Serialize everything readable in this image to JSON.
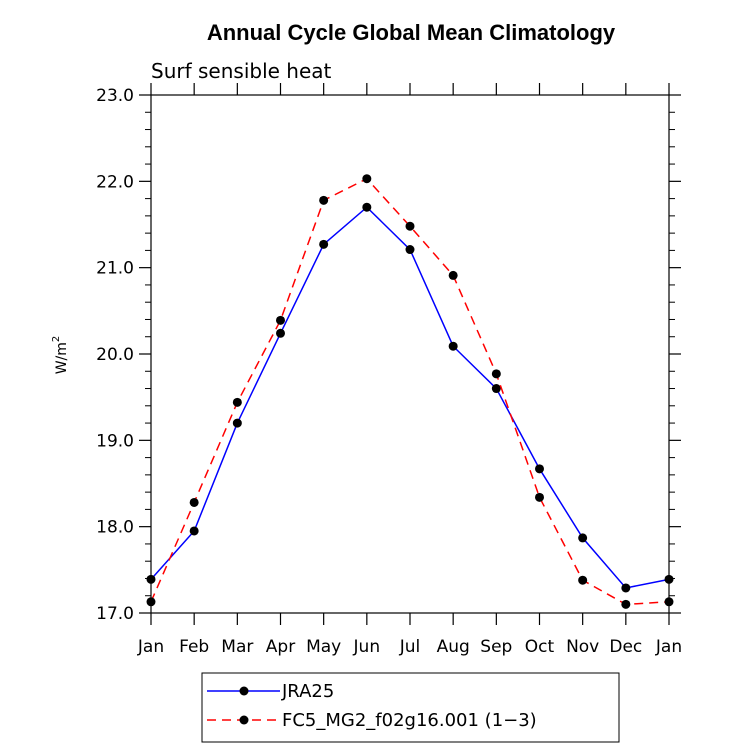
{
  "chart_data": {
    "type": "line",
    "title": "Annual Cycle Global Mean Climatology",
    "subtitle": "Surf sensible heat",
    "xlabel": "",
    "ylabel": "W/m",
    "ylabel_sup": "2",
    "categories": [
      "Jan",
      "Feb",
      "Mar",
      "Apr",
      "May",
      "Jun",
      "Jul",
      "Aug",
      "Sep",
      "Oct",
      "Nov",
      "Dec",
      "Jan"
    ],
    "ylim": [
      17.0,
      23.0
    ],
    "yticks": [
      "17.0",
      "18.0",
      "19.0",
      "20.0",
      "21.0",
      "22.0",
      "23.0"
    ],
    "series": [
      {
        "name": "JRA25",
        "color": "#0000ff",
        "dash": "solid",
        "values": [
          17.39,
          17.95,
          19.2,
          20.24,
          21.27,
          21.7,
          21.21,
          20.09,
          19.6,
          18.67,
          17.87,
          17.29,
          17.39
        ]
      },
      {
        "name": "FC5_MG2_f02g16.001 (1−3)",
        "color": "#ff0000",
        "dash": "dashed",
        "values": [
          17.13,
          18.28,
          19.44,
          20.39,
          21.78,
          22.03,
          21.48,
          20.91,
          19.77,
          18.34,
          17.38,
          17.1,
          17.13
        ]
      }
    ],
    "legend": [
      "JRA25",
      "FC5_MG2_f02g16.001 (1−3)"
    ]
  }
}
